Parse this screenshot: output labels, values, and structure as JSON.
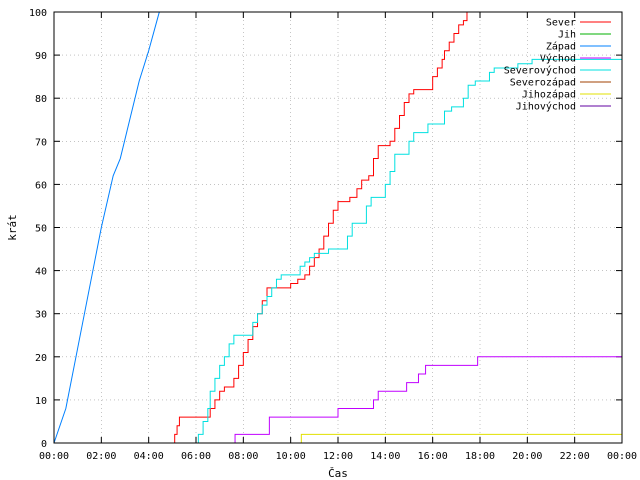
{
  "chart_data": {
    "type": "line",
    "title": "",
    "xlabel": "Čas",
    "ylabel": "krát",
    "xlim": [
      0,
      24
    ],
    "ylim": [
      0,
      100
    ],
    "grid": true,
    "legend_placement": "top-right",
    "x_ticks": [
      {
        "value": 0,
        "label": "00:00"
      },
      {
        "value": 2,
        "label": "02:00"
      },
      {
        "value": 4,
        "label": "04:00"
      },
      {
        "value": 6,
        "label": "06:00"
      },
      {
        "value": 8,
        "label": "08:00"
      },
      {
        "value": 10,
        "label": "10:00"
      },
      {
        "value": 12,
        "label": "12:00"
      },
      {
        "value": 14,
        "label": "14:00"
      },
      {
        "value": 16,
        "label": "16:00"
      },
      {
        "value": 18,
        "label": "18:00"
      },
      {
        "value": 20,
        "label": "20:00"
      },
      {
        "value": 22,
        "label": "22:00"
      },
      {
        "value": 24,
        "label": "00:00"
      }
    ],
    "y_ticks": [
      0,
      10,
      20,
      30,
      40,
      50,
      60,
      70,
      80,
      90,
      100
    ],
    "series": [
      {
        "name": "Sever",
        "color": "#ff0000",
        "step": true,
        "points": [
          [
            0,
            0
          ],
          [
            5.0,
            0
          ],
          [
            5.1,
            2
          ],
          [
            5.2,
            4
          ],
          [
            5.3,
            6
          ],
          [
            6.5,
            6
          ],
          [
            6.6,
            8
          ],
          [
            6.8,
            10
          ],
          [
            7.0,
            12
          ],
          [
            7.2,
            13
          ],
          [
            7.5,
            13
          ],
          [
            7.6,
            15
          ],
          [
            7.8,
            18
          ],
          [
            8.0,
            21
          ],
          [
            8.2,
            24
          ],
          [
            8.4,
            27
          ],
          [
            8.6,
            30
          ],
          [
            8.8,
            33
          ],
          [
            9.0,
            36
          ],
          [
            9.8,
            36
          ],
          [
            10.0,
            37
          ],
          [
            10.3,
            38
          ],
          [
            10.6,
            39
          ],
          [
            10.8,
            41
          ],
          [
            11.0,
            43
          ],
          [
            11.2,
            45
          ],
          [
            11.4,
            48
          ],
          [
            11.6,
            51
          ],
          [
            11.8,
            54
          ],
          [
            12.0,
            56
          ],
          [
            12.5,
            57
          ],
          [
            12.8,
            59
          ],
          [
            13.0,
            61
          ],
          [
            13.3,
            62
          ],
          [
            13.5,
            66
          ],
          [
            13.7,
            69
          ],
          [
            14.0,
            69
          ],
          [
            14.2,
            70
          ],
          [
            14.4,
            73
          ],
          [
            14.6,
            76
          ],
          [
            14.8,
            79
          ],
          [
            15.0,
            81
          ],
          [
            15.2,
            82
          ],
          [
            15.8,
            82
          ],
          [
            16.0,
            85
          ],
          [
            16.2,
            87
          ],
          [
            16.4,
            89
          ],
          [
            16.5,
            91
          ],
          [
            16.7,
            93
          ],
          [
            16.9,
            95
          ],
          [
            17.1,
            97
          ],
          [
            17.3,
            98
          ],
          [
            17.45,
            100
          ]
        ]
      },
      {
        "name": "Jih",
        "color": "#00b000",
        "step": true,
        "points": []
      },
      {
        "name": "Západ",
        "color": "#0080ff",
        "step": false,
        "points": [
          [
            0,
            0
          ],
          [
            0.5,
            8
          ],
          [
            1.0,
            22
          ],
          [
            1.5,
            36
          ],
          [
            2.0,
            50
          ],
          [
            2.5,
            62
          ],
          [
            2.8,
            66
          ],
          [
            3.2,
            75
          ],
          [
            3.6,
            84
          ],
          [
            4.0,
            91
          ],
          [
            4.4,
            99
          ],
          [
            4.45,
            100
          ]
        ]
      },
      {
        "name": "Východ",
        "color": "#c000ff",
        "step": true,
        "points": [
          [
            0,
            0
          ],
          [
            7.6,
            0
          ],
          [
            7.65,
            2
          ],
          [
            9.0,
            2
          ],
          [
            9.1,
            6
          ],
          [
            11.9,
            6
          ],
          [
            12.0,
            8
          ],
          [
            13.4,
            8
          ],
          [
            13.5,
            10
          ],
          [
            13.7,
            12
          ],
          [
            14.8,
            12
          ],
          [
            14.9,
            14
          ],
          [
            15.3,
            14
          ],
          [
            15.4,
            16
          ],
          [
            15.6,
            16
          ],
          [
            15.7,
            18
          ],
          [
            17.8,
            18
          ],
          [
            17.9,
            20
          ],
          [
            24,
            20
          ]
        ]
      },
      {
        "name": "Severovýchod",
        "color": "#00e0e0",
        "step": true,
        "points": [
          [
            0,
            0
          ],
          [
            6.0,
            0
          ],
          [
            6.1,
            2
          ],
          [
            6.3,
            5
          ],
          [
            6.5,
            8
          ],
          [
            6.6,
            12
          ],
          [
            6.8,
            15
          ],
          [
            7.0,
            18
          ],
          [
            7.2,
            20
          ],
          [
            7.4,
            23
          ],
          [
            7.6,
            25
          ],
          [
            8.2,
            25
          ],
          [
            8.4,
            28
          ],
          [
            8.6,
            30
          ],
          [
            8.8,
            32
          ],
          [
            9.0,
            34
          ],
          [
            9.2,
            36
          ],
          [
            9.4,
            38
          ],
          [
            9.6,
            39
          ],
          [
            10.2,
            39
          ],
          [
            10.4,
            41
          ],
          [
            10.6,
            42
          ],
          [
            10.8,
            43
          ],
          [
            11.0,
            44
          ],
          [
            11.4,
            44
          ],
          [
            11.6,
            45
          ],
          [
            12.2,
            45
          ],
          [
            12.4,
            48
          ],
          [
            12.6,
            51
          ],
          [
            13.0,
            51
          ],
          [
            13.2,
            55
          ],
          [
            13.4,
            57
          ],
          [
            13.8,
            57
          ],
          [
            14.0,
            60
          ],
          [
            14.2,
            63
          ],
          [
            14.4,
            67
          ],
          [
            14.8,
            67
          ],
          [
            15.0,
            70
          ],
          [
            15.2,
            72
          ],
          [
            15.6,
            72
          ],
          [
            15.8,
            74
          ],
          [
            16.3,
            74
          ],
          [
            16.5,
            77
          ],
          [
            16.8,
            78
          ],
          [
            17.0,
            78
          ],
          [
            17.3,
            80
          ],
          [
            17.5,
            83
          ],
          [
            17.8,
            84
          ],
          [
            18.0,
            84
          ],
          [
            18.4,
            86
          ],
          [
            18.6,
            87
          ],
          [
            19.4,
            87
          ],
          [
            19.6,
            88
          ],
          [
            20.0,
            88
          ],
          [
            20.2,
            89
          ],
          [
            24,
            89
          ]
        ]
      },
      {
        "name": "Severozápad",
        "color": "#a04000",
        "step": true,
        "points": []
      },
      {
        "name": "Jihozápad",
        "color": "#e0e000",
        "step": true,
        "points": [
          [
            0,
            0
          ],
          [
            10.4,
            0
          ],
          [
            10.45,
            2
          ],
          [
            24,
            2
          ]
        ]
      },
      {
        "name": "Jihovýchod",
        "color": "#6000a0",
        "step": true,
        "points": []
      }
    ]
  }
}
